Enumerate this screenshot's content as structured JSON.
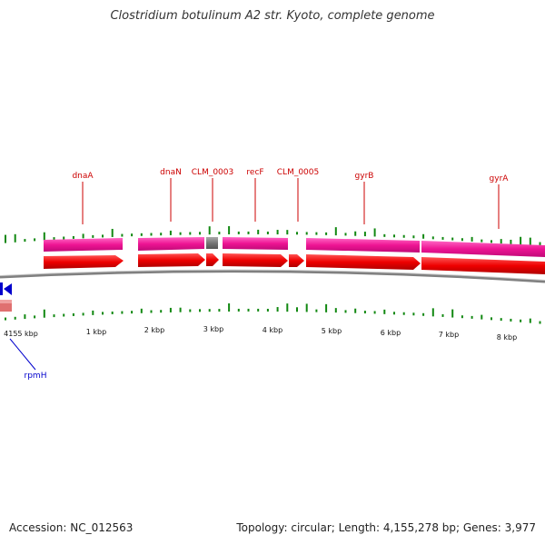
{
  "title": "Clostridium botulinum A2 str. Kyoto, complete genome",
  "footer": {
    "accession": "Accession: NC_012563",
    "summary": "Topology: circular; Length: 4,155,278 bp; Genes: 3,977"
  },
  "colors": {
    "cds_forward": "#ee0000",
    "gene_forward": "#ee1493",
    "gene_reverse": "#0000cc",
    "pseudo_gene": "#777777",
    "backbone": "#808080",
    "gc_ticks": "#118811",
    "forward_label": "#cc0000",
    "reverse_label": "#0000cc"
  },
  "tick_labels": [
    "4155 kbp",
    "1 kbp",
    "2 kbp",
    "3 kbp",
    "4 kbp",
    "5 kbp",
    "6 kbp",
    "7 kbp",
    "8 kbp"
  ],
  "gene_labels_forward": [
    "dnaA",
    "dnaN",
    "CLM_0003",
    "recF",
    "CLM_0005",
    "gyrB",
    "gyrA"
  ],
  "gene_labels_reverse": [
    "rpmH"
  ]
}
